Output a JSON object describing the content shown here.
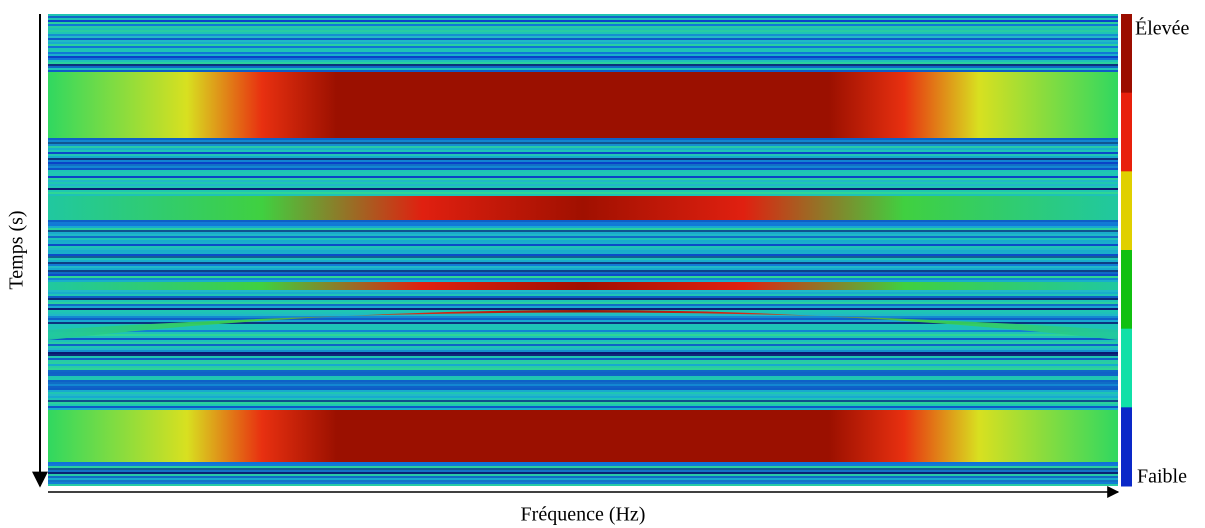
{
  "chart_data": {
    "type": "heatmap",
    "x_label": "Fréquence (Hz)",
    "y_label": "Temps (s)",
    "colorbar": {
      "high_label": "Élevée",
      "low_label": "Faible",
      "colors": [
        "#9b0d00",
        "#e8200c",
        "#e0d000",
        "#10c010",
        "#10e0a8",
        "#0a28c8"
      ]
    }
  }
}
